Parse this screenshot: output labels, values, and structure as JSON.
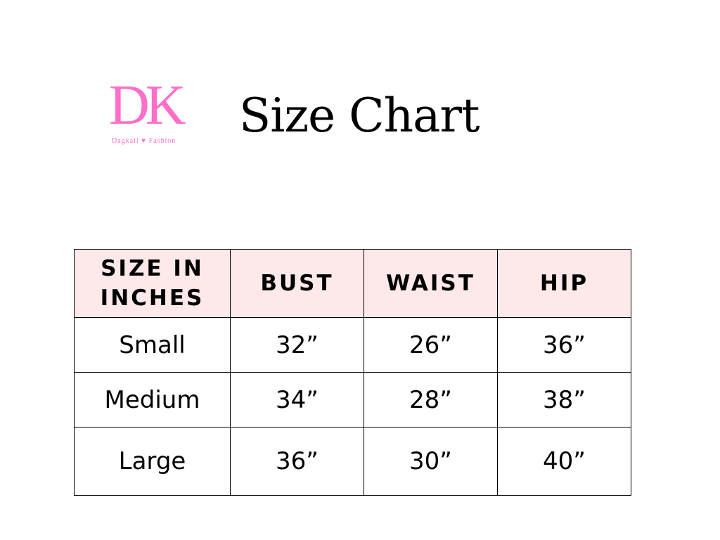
{
  "logo": {
    "letters": "DK",
    "brand": "Dagkail ♥ Fashion"
  },
  "title": "Size Chart",
  "colors": {
    "header_bg": "#fde8ea",
    "logo": "#ff6ec7"
  },
  "table": {
    "headers": [
      "SIZE IN INCHES",
      "BUST",
      "WAIST",
      "HIP"
    ],
    "rows": [
      [
        "Small",
        "32”",
        "26”",
        "36”"
      ],
      [
        "Medium",
        "34”",
        "28”",
        "38”"
      ],
      [
        "Large",
        "36”",
        "30”",
        "40”"
      ]
    ]
  }
}
